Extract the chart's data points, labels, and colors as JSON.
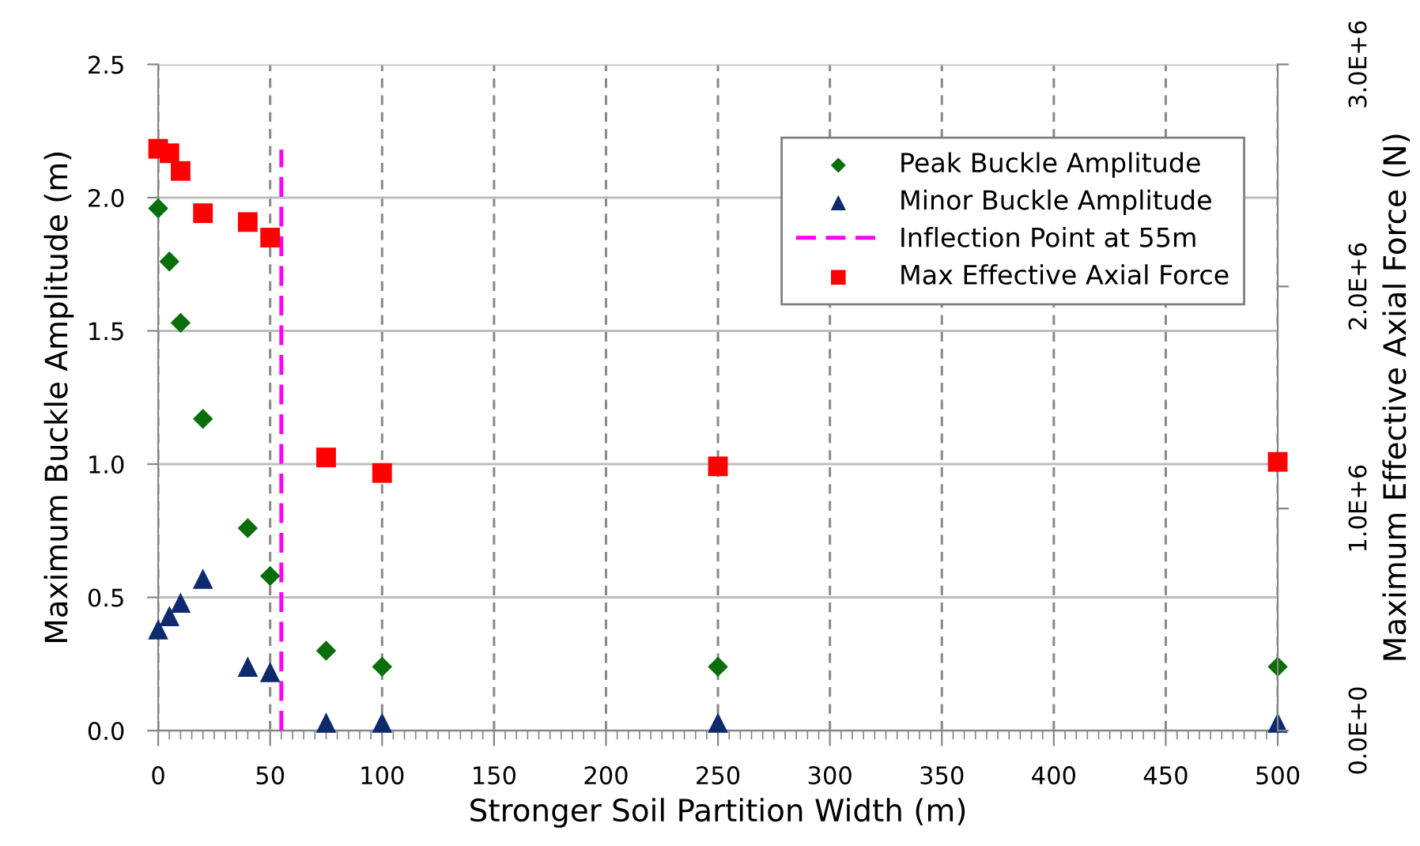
{
  "chart_data": {
    "type": "scatter",
    "xlabel": "Stronger Soil Partition Width (m)",
    "ylabel": "Maximum Buckle Amplitude (m)",
    "y2label": "Maximum Effective Axial Force (N)",
    "x": [
      0,
      5,
      10,
      20,
      40,
      50,
      75,
      100,
      250,
      500
    ],
    "series": [
      {
        "name": "Peak Buckle Amplitude",
        "color": "#0a6e0a",
        "marker": "diamond",
        "values": [
          1.96,
          1.76,
          1.53,
          1.17,
          0.76,
          0.58,
          0.3,
          0.24,
          0.24,
          0.24
        ]
      },
      {
        "name": "Minor Buckle Amplitude",
        "color": "#0d2a6e",
        "marker": "triangle",
        "values": [
          0.38,
          0.43,
          0.48,
          0.57,
          0.24,
          0.22,
          0.03,
          0.03,
          0.03,
          0.03
        ]
      },
      {
        "name": "Inflection Point at 55m",
        "type": "line",
        "color": "#ff00ff",
        "marker": "none",
        "line_style": "dashed",
        "x": [
          55,
          55
        ],
        "values": [
          0,
          2.18
        ]
      },
      {
        "name": "Max Effective Axial Force",
        "color": "#ff0000",
        "marker": "square",
        "axis": "y2",
        "values": [
          2620000,
          2600000,
          2520000,
          2330000,
          2290000,
          2220000,
          1230000,
          1160000,
          1190000,
          1210000
        ]
      }
    ],
    "xlim": [
      0,
      500
    ],
    "xticks": [
      0,
      50,
      100,
      150,
      200,
      250,
      300,
      350,
      400,
      450,
      500
    ],
    "ylim": [
      0,
      2.5
    ],
    "yticks": [
      {
        "value": 0,
        "label": "0.0"
      },
      0.5,
      {
        "value": 1,
        "label": "1.0"
      },
      1.5,
      {
        "value": 2,
        "label": "2.0"
      },
      2.5
    ],
    "y2lim": [
      0,
      3000000
    ],
    "y2ticks": [
      {
        "value": 0,
        "label": "0.0E+0"
      },
      {
        "value": 1000000,
        "label": "1.0E+6"
      },
      {
        "value": 2000000,
        "label": "2.0E+6"
      },
      {
        "value": 3000000,
        "label": "3.0E+6"
      }
    ],
    "grid": true,
    "legend": "top right"
  }
}
